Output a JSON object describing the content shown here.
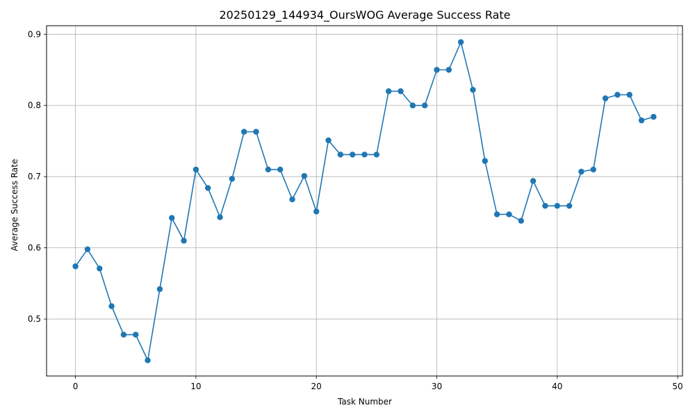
{
  "chart_data": {
    "type": "line",
    "title": "20250129_144934_OursWOG Average Success Rate",
    "xlabel": "Task Number",
    "ylabel": "Average Success Rate",
    "xlim": [
      -2.4,
      50.4
    ],
    "ylim": [
      0.42,
      0.912
    ],
    "xticks": [
      0,
      10,
      20,
      30,
      40,
      50
    ],
    "yticks": [
      0.5,
      0.6,
      0.7,
      0.8,
      0.9
    ],
    "xtick_labels": [
      "0",
      "10",
      "20",
      "30",
      "40",
      "50"
    ],
    "ytick_labels": [
      "0.5",
      "0.6",
      "0.7",
      "0.8",
      "0.9"
    ],
    "grid": true,
    "line_color": "#1f77b4",
    "marker": "circle",
    "series": [
      {
        "x": [
          0,
          1,
          2,
          3,
          4,
          5,
          6,
          7,
          8,
          9,
          10,
          11,
          12,
          13,
          14,
          15,
          16,
          17,
          18,
          19,
          20,
          21,
          22,
          23,
          24,
          25,
          26,
          27,
          28,
          29,
          30,
          31,
          32,
          33,
          34,
          35,
          36,
          37,
          38,
          39,
          40,
          41,
          42,
          43,
          44,
          45,
          46,
          47,
          48
        ],
        "values": [
          0.574,
          0.598,
          0.571,
          0.518,
          0.478,
          0.478,
          0.442,
          0.542,
          0.642,
          0.61,
          0.71,
          0.684,
          0.643,
          0.697,
          0.763,
          0.763,
          0.71,
          0.71,
          0.668,
          0.701,
          0.651,
          0.751,
          0.731,
          0.731,
          0.731,
          0.731,
          0.82,
          0.82,
          0.8,
          0.8,
          0.85,
          0.85,
          0.889,
          0.822,
          0.722,
          0.647,
          0.647,
          0.638,
          0.694,
          0.659,
          0.659,
          0.659,
          0.707,
          0.71,
          0.81,
          0.815,
          0.815,
          0.779,
          0.784
        ]
      }
    ]
  }
}
